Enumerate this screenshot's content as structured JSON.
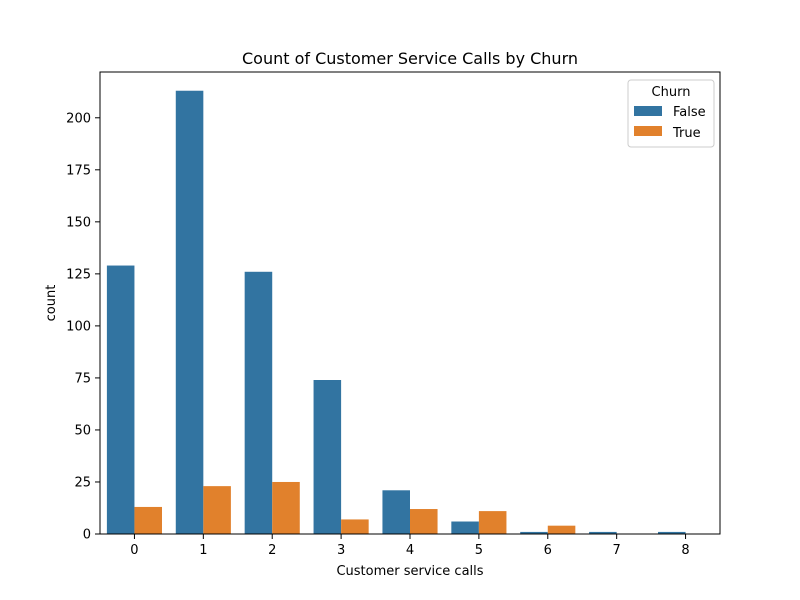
{
  "chart_data": {
    "type": "bar",
    "title": "Count of Customer Service Calls by Churn",
    "xlabel": "Customer service calls",
    "ylabel": "count",
    "categories": [
      "0",
      "1",
      "2",
      "3",
      "4",
      "5",
      "6",
      "7",
      "8"
    ],
    "ylim": [
      0,
      222
    ],
    "yticks": [
      0,
      25,
      50,
      75,
      100,
      125,
      150,
      175,
      200
    ],
    "grid": false,
    "legend": {
      "title": "Churn",
      "placement": "top-right"
    },
    "series": [
      {
        "name": "False",
        "color": "#3274a1",
        "values": [
          129,
          213,
          126,
          74,
          21,
          6,
          1,
          1,
          1
        ]
      },
      {
        "name": "True",
        "color": "#e1812c",
        "values": [
          13,
          23,
          25,
          7,
          12,
          11,
          4,
          0,
          0
        ]
      }
    ]
  }
}
